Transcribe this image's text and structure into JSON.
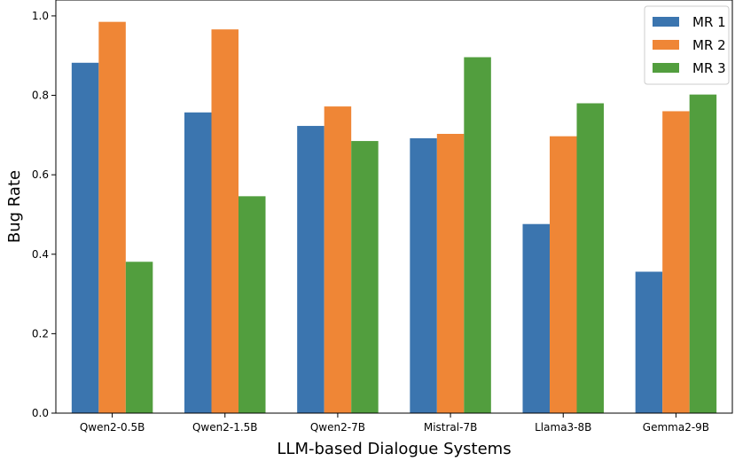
{
  "chart_data": {
    "type": "bar",
    "title": "",
    "xlabel": "LLM-based Dialogue Systems",
    "ylabel": "Bug Rate",
    "categories": [
      "Qwen2-0.5B",
      "Qwen2-1.5B",
      "Qwen2-7B",
      "Mistral-7B",
      "Llama3-8B",
      "Gemma2-9B"
    ],
    "series": [
      {
        "name": "MR 1",
        "color": "#3b75af",
        "values": [
          0.882,
          0.757,
          0.723,
          0.692,
          0.476,
          0.356
        ]
      },
      {
        "name": "MR 2",
        "color": "#ef8636",
        "values": [
          0.985,
          0.966,
          0.772,
          0.703,
          0.697,
          0.76
        ]
      },
      {
        "name": "MR 3",
        "color": "#529e3e",
        "values": [
          0.381,
          0.546,
          0.685,
          0.896,
          0.78,
          0.802
        ]
      }
    ],
    "yticks": [
      "0.0",
      "0.2",
      "0.4",
      "0.6",
      "0.8",
      "1.0"
    ],
    "ylim": [
      0,
      1.0
    ],
    "grid": false,
    "legend_position": "top-right"
  }
}
